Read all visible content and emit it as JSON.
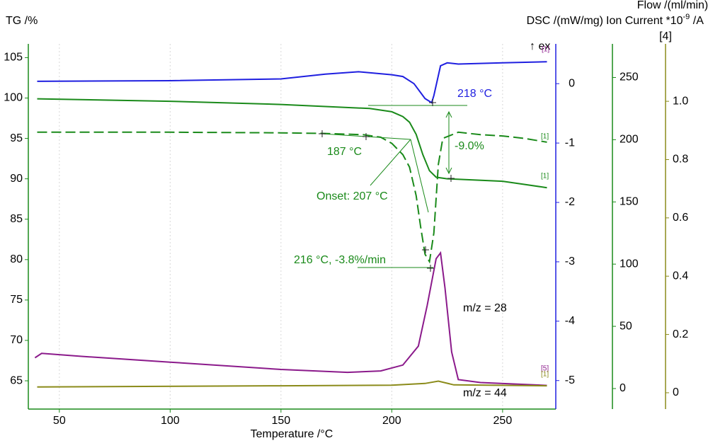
{
  "chart_data": {
    "type": "line",
    "x_label": "Temperature /°C",
    "xlim": [
      36,
      274
    ],
    "xticks": [
      50,
      100,
      150,
      200,
      250
    ],
    "grid": true,
    "y_label": "TG /%",
    "ylim": [
      61.5,
      106.7
    ],
    "yticks": [
      65,
      70,
      75,
      80,
      85,
      90,
      95,
      100,
      105
    ],
    "y2_label": "DSC /(mW/mg)",
    "y2lim": [
      -5.48,
      0.67
    ],
    "y2ticks": [
      -5,
      -4,
      -3,
      -2,
      -1,
      0
    ],
    "y3_label": "Flow /(ml/min)",
    "y3lim": [
      -16.5,
      277
    ],
    "y3ticks": [
      0,
      50,
      100,
      150,
      200,
      250
    ],
    "y4_label": [
      "Ion Current *10",
      "-9",
      " /A"
    ],
    "y4_tag": "[4]",
    "y4lim": [
      -0.056,
      1.197
    ],
    "y4ticks": [
      0,
      0.2,
      0.4,
      0.6,
      0.8,
      {
        "value": 1,
        "label": "1.0"
      }
    ],
    "series": [
      {
        "color": "#1f1fe0",
        "axis": "y2",
        "dash": false,
        "x": [
          40,
          100,
          150,
          170,
          185,
          200,
          205,
          210,
          215,
          218,
          219,
          222,
          225,
          230,
          250,
          270
        ],
        "values": [
          0.04,
          0.05,
          0.08,
          0.16,
          0.2,
          0.15,
          0.12,
          0,
          -0.25,
          -0.32,
          -0.2,
          0.3,
          0.35,
          0.33,
          0.35,
          0.37
        ]
      },
      {
        "color": "#1a8a1a",
        "axis": "y",
        "dash": false,
        "x": [
          40,
          100,
          150,
          190,
          200,
          205,
          208,
          211,
          214,
          217,
          220,
          225,
          250,
          260,
          270
        ],
        "values": [
          99.9,
          99.6,
          99.2,
          98.7,
          98.3,
          97.7,
          97,
          95.5,
          93,
          91,
          90.2,
          90,
          89.7,
          89.3,
          88.9
        ]
      },
      {
        "color": "#1a8a1a",
        "axis": "y3",
        "dash": true,
        "x": [
          40,
          100,
          150,
          170,
          187,
          195,
          200,
          205,
          208,
          211,
          213,
          215,
          217,
          219,
          221,
          223,
          230,
          240,
          250,
          260,
          270
        ],
        "values": [
          206,
          206,
          205.5,
          205,
          204,
          202,
          197,
          188,
          178,
          155,
          130,
          108,
          102,
          125,
          180,
          201,
          206,
          204,
          203,
          201,
          198
        ]
      },
      {
        "name": "m/z = 28",
        "color": "#8b1a8b",
        "axis": "y4",
        "dash": false,
        "x": [
          39,
          42,
          60,
          100,
          150,
          180,
          195,
          205,
          212,
          216,
          220,
          222,
          224,
          227,
          230,
          240,
          270
        ],
        "values": [
          0.12,
          0.135,
          0.125,
          0.105,
          0.08,
          0.07,
          0.075,
          0.095,
          0.16,
          0.3,
          0.46,
          0.48,
          0.36,
          0.14,
          0.045,
          0.035,
          0.025
        ]
      },
      {
        "name": "m/z = 44",
        "color": "#8b8b1a",
        "axis": "y4",
        "dash": false,
        "x": [
          40,
          150,
          200,
          215,
          221,
          228,
          270
        ],
        "values": [
          0.02,
          0.024,
          0.026,
          0.032,
          0.04,
          0.027,
          0.024
        ]
      }
    ],
    "annotations": [
      "↑ ex",
      "218 °C",
      "-9.0%",
      "187 °C",
      "Onset: 207 °C",
      "216 °C, -3.8%/min",
      "[1]",
      "[1]",
      "[1]",
      "[5]",
      "[1]"
    ]
  }
}
